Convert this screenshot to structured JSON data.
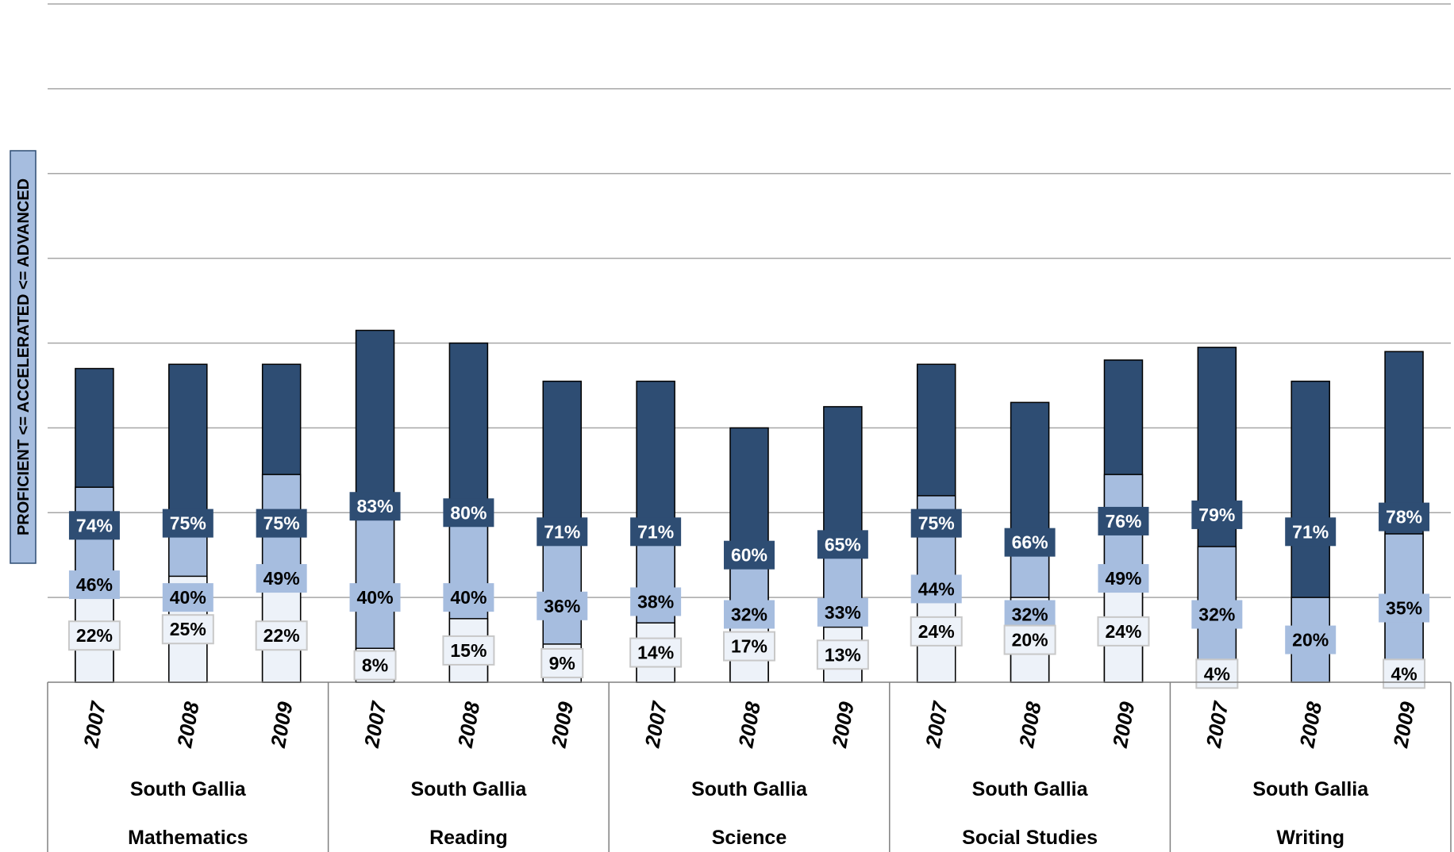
{
  "chart_data": {
    "type": "bar",
    "stacked": true,
    "ylabel": "PROFICIENT <= ACCELERATED <= ADVANCED",
    "district": "South Gallia",
    "groups": [
      "Mathematics",
      "Reading",
      "Science",
      "Social Studies",
      "Writing"
    ],
    "years": [
      "2007",
      "2008",
      "2009"
    ],
    "ylim": [
      0,
      160
    ],
    "grid": true,
    "colors": {
      "Proficient": "#2e4d73",
      "Accelerated": "#a6bddf",
      "Advanced": "#edf2f9"
    },
    "series": [
      {
        "name": "Proficient",
        "values": [
          74,
          75,
          75,
          83,
          80,
          71,
          71,
          60,
          65,
          75,
          66,
          76,
          79,
          71,
          78
        ]
      },
      {
        "name": "Accelerated",
        "values": [
          46,
          40,
          49,
          40,
          40,
          36,
          38,
          32,
          33,
          44,
          32,
          49,
          32,
          20,
          35
        ]
      },
      {
        "name": "Advanced",
        "values": [
          22,
          25,
          22,
          8,
          15,
          9,
          14,
          17,
          13,
          24,
          20,
          24,
          4,
          null,
          4
        ]
      }
    ]
  }
}
